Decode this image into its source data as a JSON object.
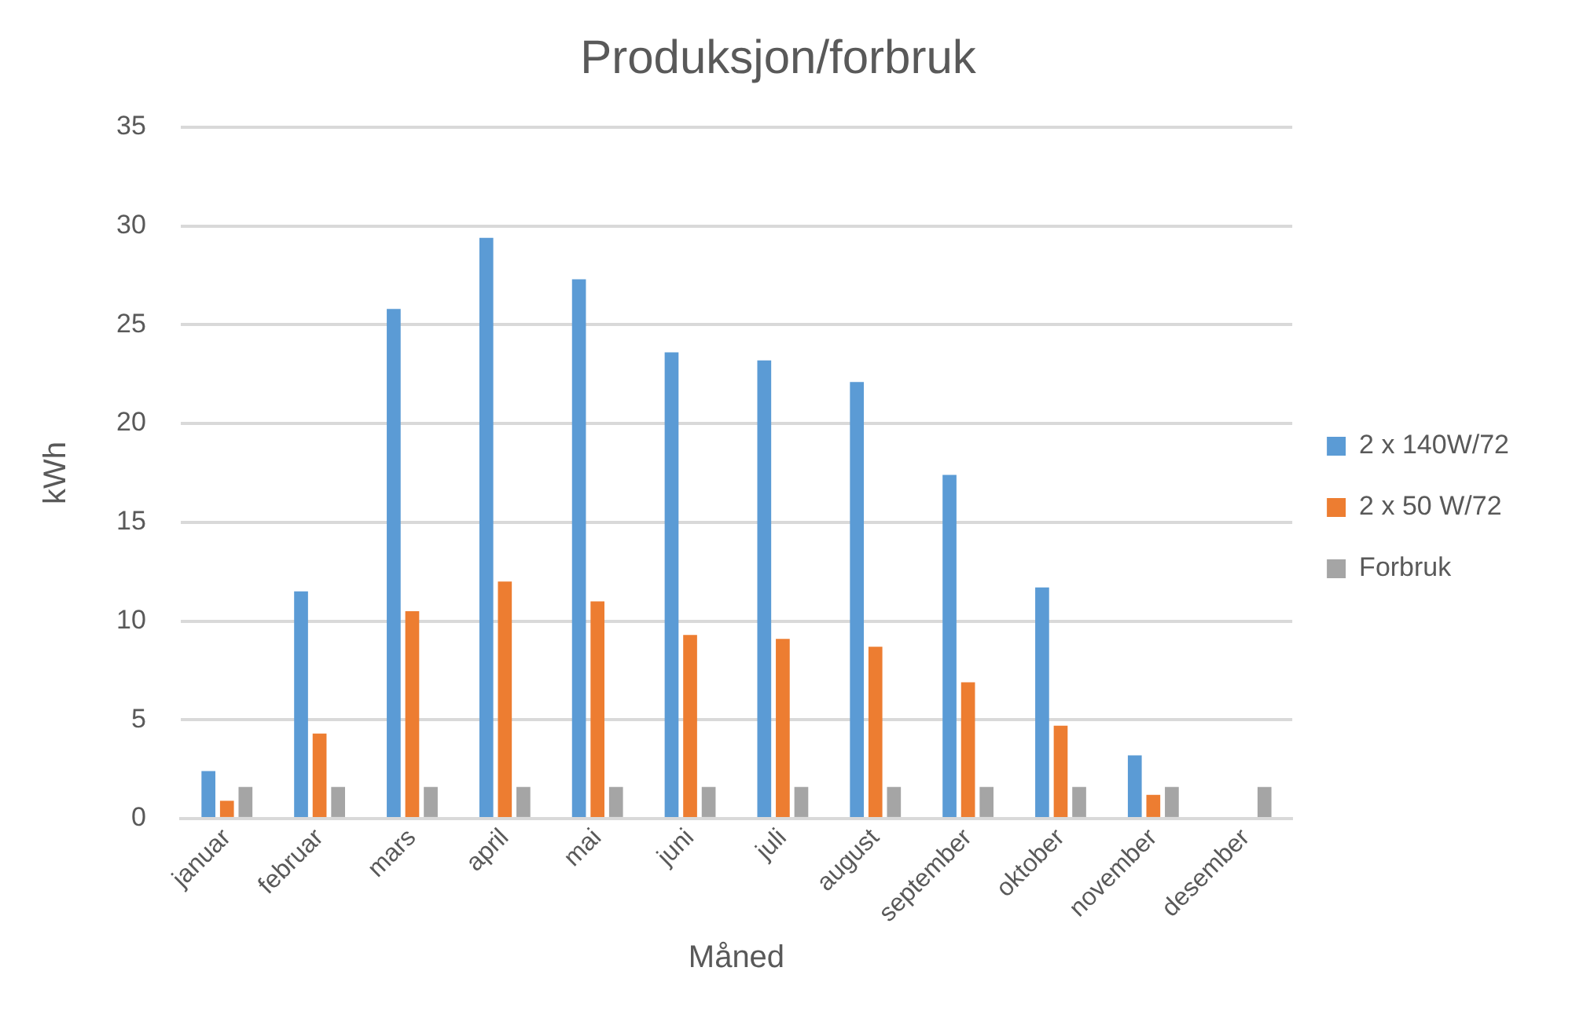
{
  "chart_data": {
    "type": "bar",
    "title": "Produksjon/forbruk",
    "xlabel": "Måned",
    "ylabel": "kWh",
    "categories": [
      "januar",
      "februar",
      "mars",
      "april",
      "mai",
      "juni",
      "juli",
      "august",
      "september",
      "oktober",
      "november",
      "desember"
    ],
    "series": [
      {
        "name": "2 x 140W/72",
        "color": "#5b9bd5",
        "values": [
          2.4,
          11.5,
          25.8,
          29.4,
          27.3,
          23.6,
          23.2,
          22.1,
          17.4,
          11.7,
          3.2,
          null
        ]
      },
      {
        "name": "2 x 50 W/72",
        "color": "#ed7d31",
        "values": [
          0.9,
          4.3,
          10.5,
          12.0,
          11.0,
          9.3,
          9.1,
          8.7,
          6.9,
          4.7,
          1.2,
          null
        ]
      },
      {
        "name": "Forbruk",
        "color": "#a5a5a5",
        "values": [
          1.6,
          1.6,
          1.6,
          1.6,
          1.6,
          1.6,
          1.6,
          1.6,
          1.6,
          1.6,
          1.6,
          1.6
        ]
      }
    ],
    "ylim": [
      0,
      35
    ],
    "yticks": [
      0,
      5,
      10,
      15,
      20,
      25,
      30,
      35
    ],
    "grid": "y",
    "legend": "right"
  }
}
